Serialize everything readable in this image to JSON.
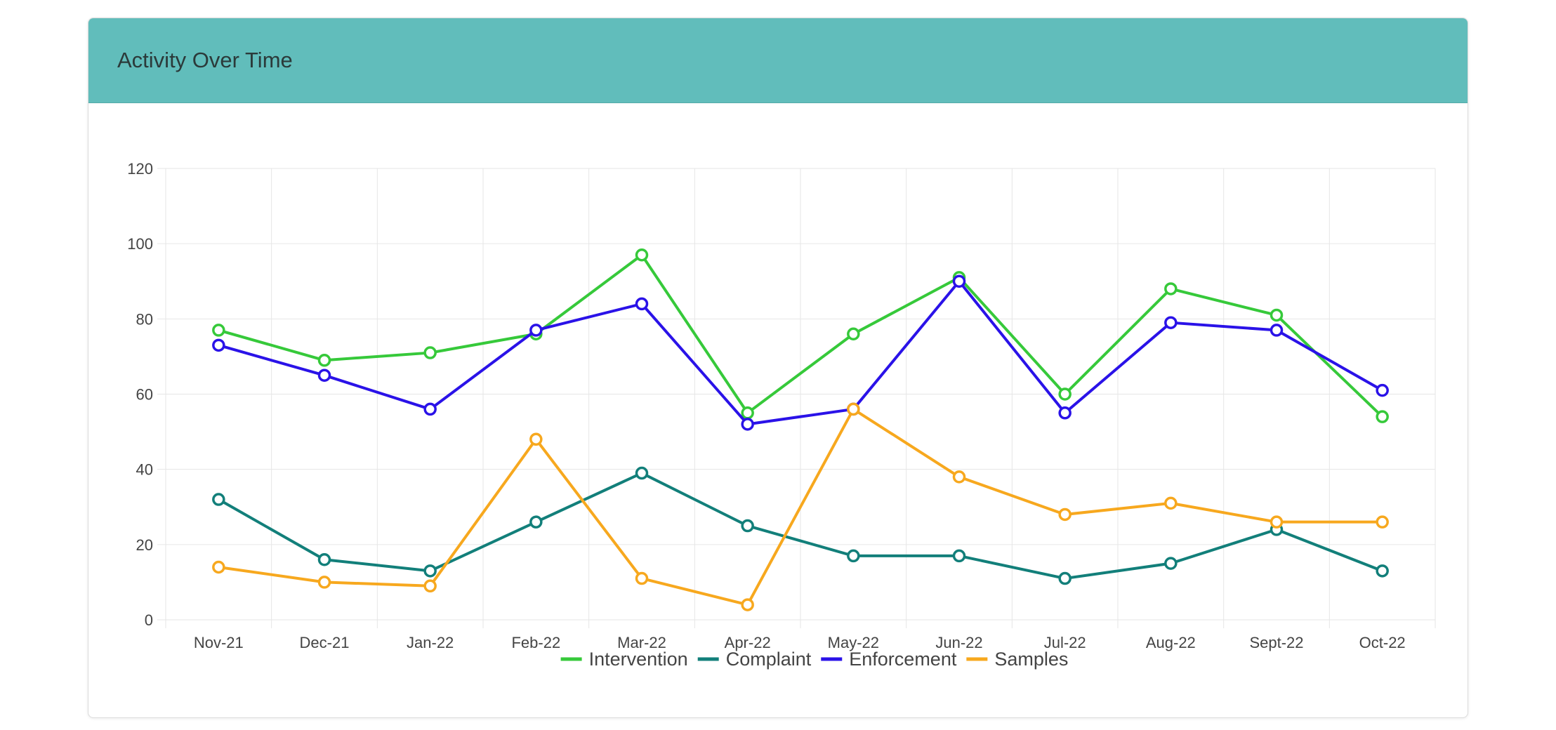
{
  "card": {
    "title": "Activity Over Time"
  },
  "colors": {
    "header_bg": "#61bdbb",
    "grid": "#e6e6e6",
    "text": "#444444"
  },
  "chart_data": {
    "type": "line",
    "title": "",
    "xlabel": "",
    "ylabel": "",
    "categories": [
      "Nov-21",
      "Dec-21",
      "Jan-22",
      "Feb-22",
      "Mar-22",
      "Apr-22",
      "May-22",
      "Jun-22",
      "Jul-22",
      "Aug-22",
      "Sept-22",
      "Oct-22"
    ],
    "ylim": [
      0,
      120
    ],
    "yticks": [
      0,
      20,
      40,
      60,
      80,
      100,
      120
    ],
    "grid": true,
    "legend_position": "bottom",
    "series": [
      {
        "name": "Intervention",
        "color": "#36c93a",
        "values": [
          77,
          69,
          71,
          76,
          97,
          55,
          76,
          91,
          60,
          88,
          81,
          54
        ]
      },
      {
        "name": "Complaint",
        "color": "#127f7a",
        "values": [
          32,
          16,
          13,
          26,
          39,
          25,
          17,
          17,
          11,
          15,
          24,
          13
        ]
      },
      {
        "name": "Enforcement",
        "color": "#2a12e8",
        "values": [
          73,
          65,
          56,
          77,
          84,
          52,
          56,
          90,
          55,
          79,
          77,
          61
        ]
      },
      {
        "name": "Samples",
        "color": "#f7a81e",
        "values": [
          14,
          10,
          9,
          48,
          11,
          4,
          56,
          38,
          28,
          31,
          26,
          26
        ]
      }
    ]
  }
}
